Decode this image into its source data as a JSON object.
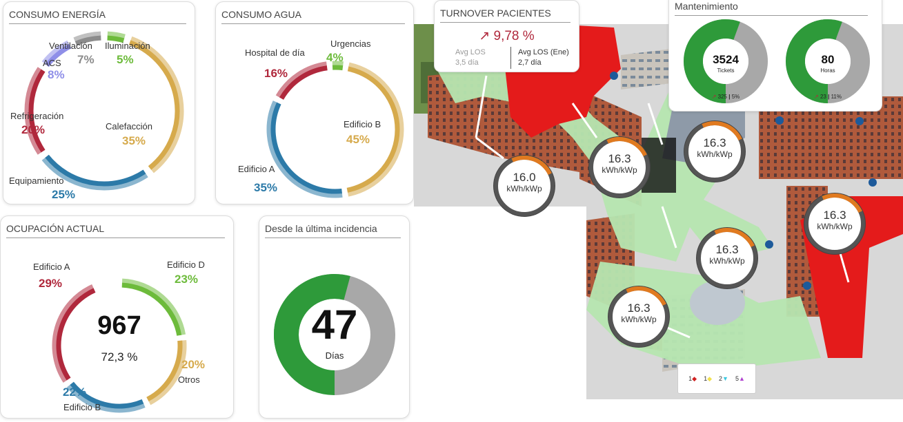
{
  "energy": {
    "title": "CONSUMO ENERGÍA",
    "segments": [
      {
        "label": "Ventilación",
        "pct": "7%",
        "color": "#8c8c8c",
        "value": 7
      },
      {
        "label": "Iluminación",
        "pct": "5%",
        "color": "#6dbb3b",
        "value": 5
      },
      {
        "label": "ACS",
        "pct": "8%",
        "color": "#8f8fe8",
        "value": 8
      },
      {
        "label": "Refrigeración",
        "pct": "20%",
        "color": "#b0283c",
        "value": 20
      },
      {
        "label": "Calefacción",
        "pct": "35%",
        "color": "#d6aa4c",
        "value": 35
      },
      {
        "label": "Equipamiento",
        "pct": "25%",
        "color": "#2c7aa8",
        "value": 25
      }
    ]
  },
  "water": {
    "title": "CONSUMO AGUA",
    "segments": [
      {
        "label": "Hospital de día",
        "pct": "16%",
        "color": "#b0283c",
        "value": 16
      },
      {
        "label": "Urgencias",
        "pct": "4%",
        "color": "#6dbb3b",
        "value": 4
      },
      {
        "label": "Edificio B",
        "pct": "45%",
        "color": "#d6aa4c",
        "value": 45
      },
      {
        "label": "Edificio A",
        "pct": "35%",
        "color": "#2c7aa8",
        "value": 35
      }
    ]
  },
  "occupancy": {
    "title": "OCUPACIÓN ACTUAL",
    "total": "967",
    "rate": "72,3 %",
    "segments": [
      {
        "label": "Edificio A",
        "pct": "29%",
        "color": "#b0283c",
        "value": 29
      },
      {
        "label": "Edificio D",
        "pct": "23%",
        "color": "#6dbb3b",
        "value": 23
      },
      {
        "label": "Otros",
        "pct": "20%",
        "color": "#d6aa4c",
        "value": 20
      },
      {
        "label": "Edificio B",
        "pct": "22%",
        "color": "#2c7aa8",
        "value": 22
      }
    ]
  },
  "incident": {
    "title": "Desde la última incidencia",
    "value": "47",
    "unit": "Días",
    "fill_fraction": 0.47,
    "colors": {
      "fill": "#2e9a3a",
      "rest": "#a8a8a8",
      "track": "#e2e2e2"
    }
  },
  "turnover": {
    "title": "TURNOVER PACIENTES",
    "arrow": "↗",
    "value": "9,78 %",
    "left_label": "Avg LOS",
    "left_value": "3,5 día",
    "right_label": "Avg LOS (Ene)",
    "right_value": "2,7 día"
  },
  "maintenance": {
    "title": "Mantenimiento",
    "gauges": [
      {
        "value": "3524",
        "unit": "Tickets",
        "trend": "↗",
        "count": "325",
        "pct": "5%",
        "fill_fraction": 0.62
      },
      {
        "value": "80",
        "unit": "Horas",
        "trend": "↗",
        "count": "23",
        "pct": "11%",
        "fill_fraction": 0.55
      }
    ]
  },
  "map": {
    "bubbles": [
      {
        "value": "16.0",
        "unit": "kWh/kWp"
      },
      {
        "value": "16.3",
        "unit": "kWh/kWp"
      },
      {
        "value": "16.3",
        "unit": "kWh/kWp"
      },
      {
        "value": "16.3",
        "unit": "kWh/kWp"
      },
      {
        "value": "16.3",
        "unit": "kWh/kWp"
      },
      {
        "value": "16.3",
        "unit": "kWh/kWp"
      }
    ],
    "legend": [
      {
        "label": "1",
        "color": "#d12020",
        "shape": "◆"
      },
      {
        "label": "1",
        "color": "#f2e14c",
        "shape": "◆"
      },
      {
        "label": "2",
        "color": "#3ac8e0",
        "shape": "▼"
      },
      {
        "label": "5",
        "color": "#b040d0",
        "shape": "▲"
      }
    ]
  }
}
